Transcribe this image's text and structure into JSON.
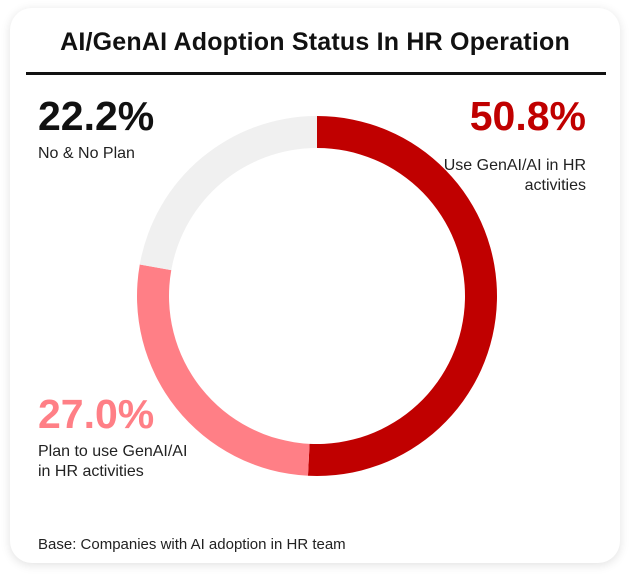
{
  "chart_data": {
    "type": "pie",
    "variant": "donut",
    "title": "AI/GenAI Adoption Status In HR Operation",
    "slices": [
      {
        "label": "Use GenAI/AI in HR activities",
        "value": 50.8,
        "display": "50.8%",
        "color": "#c00000"
      },
      {
        "label": "Plan to use GenAI/AI in HR activities",
        "value": 27.0,
        "display": "27.0%",
        "color": "#ff7f86"
      },
      {
        "label": "No & No Plan",
        "value": 22.2,
        "display": "22.2%",
        "color": "#f0f0f0"
      }
    ],
    "note": "Base: Companies with AI adoption in HR team"
  }
}
